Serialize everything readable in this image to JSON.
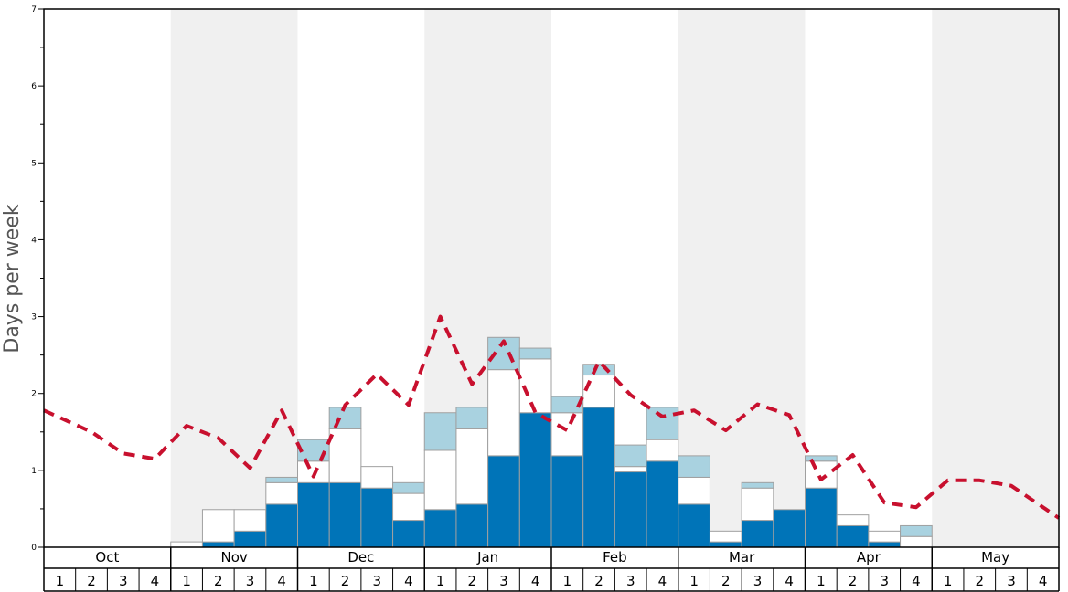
{
  "chart_data": {
    "type": "bar",
    "title": "",
    "xlabel": "",
    "ylabel": "Days per week",
    "ylim": [
      0,
      7
    ],
    "yticks": [
      0,
      1,
      2,
      3,
      4,
      5,
      6,
      7
    ],
    "months": [
      "Oct",
      "Nov",
      "Dec",
      "Jan",
      "Feb",
      "Mar",
      "Apr",
      "May"
    ],
    "weeks": [
      "1",
      "2",
      "3",
      "4"
    ],
    "stack": {
      "dark": [
        0,
        0,
        0,
        0,
        0,
        0.07,
        0.21,
        0.56,
        0.84,
        0.84,
        0.77,
        0.35,
        0.49,
        0.56,
        1.19,
        1.75,
        1.19,
        1.82,
        0.98,
        1.12,
        0.56,
        0.07,
        0.35,
        0.49,
        0.77,
        0.28,
        0.07,
        0,
        0,
        0,
        0,
        0
      ],
      "white": [
        0,
        0,
        0,
        0,
        0.07,
        0.42,
        0.28,
        0.28,
        0.28,
        0.7,
        0.28,
        0.35,
        0.77,
        0.98,
        1.12,
        0.7,
        0.56,
        0.42,
        0.07,
        0.28,
        0.35,
        0.14,
        0.42,
        0,
        0.35,
        0.14,
        0.14,
        0.14,
        0,
        0,
        0,
        0
      ],
      "light": [
        0,
        0,
        0,
        0,
        0,
        0,
        0,
        0.07,
        0.28,
        0.28,
        0,
        0.14,
        0.49,
        0.28,
        0.42,
        0.14,
        0.21,
        0.14,
        0.28,
        0.42,
        0.28,
        0,
        0.07,
        0,
        0.07,
        0,
        0,
        0.14,
        0,
        0,
        0,
        0
      ]
    },
    "line": [
      1.78,
      1.5,
      1.22,
      1.15,
      1.58,
      1.42,
      1.03,
      1.78,
      0.92,
      1.85,
      2.25,
      1.85,
      3.0,
      2.12,
      2.68,
      1.75,
      1.52,
      2.42,
      1.98,
      1.7,
      1.78,
      1.52,
      1.86,
      1.72,
      0.88,
      1.2,
      0.58,
      0.52,
      0.87,
      0.87,
      0.8,
      0.38
    ],
    "colors": {
      "dark": "#0074b8",
      "white": "#ffffff",
      "light": "#a9d2e0",
      "line": "#c8102e",
      "shade": "#f0f0f0",
      "bar_stroke": "#a0a0a0"
    }
  }
}
